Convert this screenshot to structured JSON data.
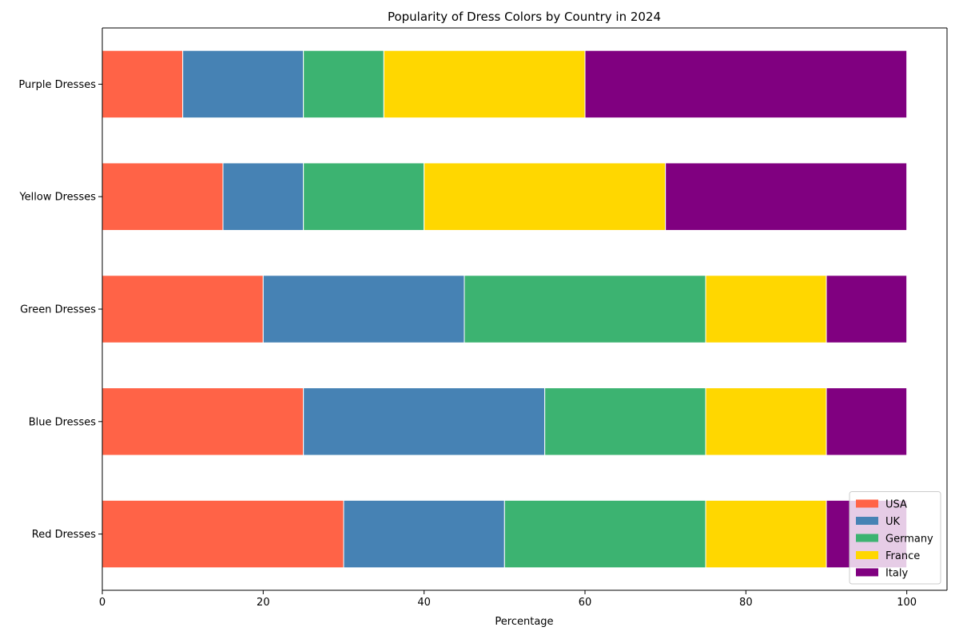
{
  "chart_data": {
    "type": "bar",
    "orientation": "horizontal",
    "stacked": true,
    "title": "Popularity of Dress Colors by Country in 2024",
    "xlabel": "Percentage",
    "ylabel": "",
    "xlim": [
      0,
      105
    ],
    "xticks": [
      "0",
      "20",
      "40",
      "60",
      "80",
      "100"
    ],
    "categories": [
      "Red Dresses",
      "Blue Dresses",
      "Green Dresses",
      "Yellow Dresses",
      "Purple Dresses"
    ],
    "series": [
      {
        "name": "USA",
        "color": "#ff6347",
        "values": [
          30,
          25,
          20,
          15,
          10
        ]
      },
      {
        "name": "UK",
        "color": "#4682b4",
        "values": [
          20,
          30,
          25,
          10,
          15
        ]
      },
      {
        "name": "Germany",
        "color": "#3cb371",
        "values": [
          25,
          20,
          30,
          15,
          10
        ]
      },
      {
        "name": "France",
        "color": "#ffd700",
        "values": [
          15,
          15,
          15,
          30,
          25
        ]
      },
      {
        "name": "Italy",
        "color": "#800080",
        "values": [
          10,
          10,
          10,
          30,
          40
        ]
      }
    ],
    "grid": false,
    "legend_position": "bottom-right"
  }
}
